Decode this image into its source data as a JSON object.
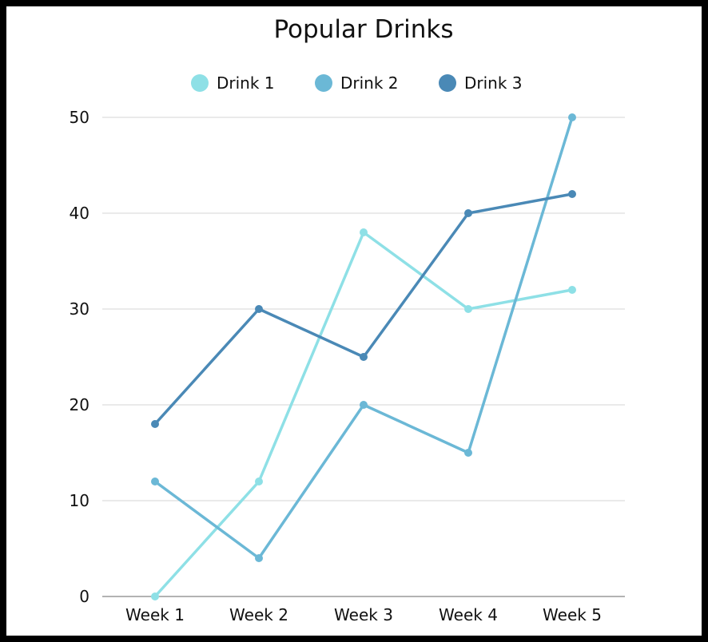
{
  "chart_data": {
    "type": "line",
    "title": "Popular Drinks",
    "xlabel": "",
    "ylabel": "",
    "categories": [
      "Week 1",
      "Week 2",
      "Week 3",
      "Week 4",
      "Week 5"
    ],
    "ylim": [
      0,
      50
    ],
    "yticks": [
      0,
      10,
      20,
      30,
      40,
      50
    ],
    "grid": true,
    "legend_position": "top-center",
    "series": [
      {
        "name": "Drink 1",
        "color": "#8ee0e6",
        "values": [
          0,
          12,
          38,
          30,
          32
        ]
      },
      {
        "name": "Drink 2",
        "color": "#6bb8d6",
        "values": [
          12,
          4,
          20,
          15,
          50
        ]
      },
      {
        "name": "Drink 3",
        "color": "#4a89b6",
        "values": [
          18,
          30,
          25,
          40,
          42
        ]
      }
    ]
  }
}
